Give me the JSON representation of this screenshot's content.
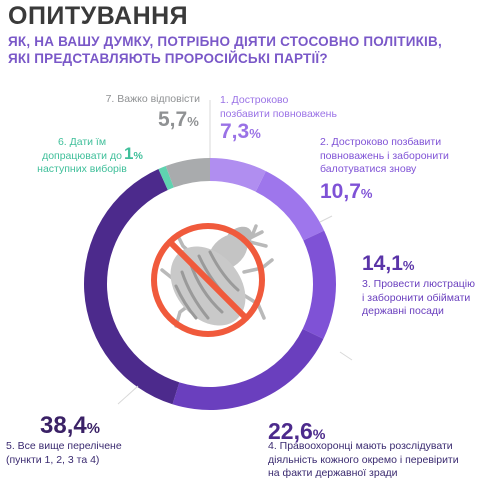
{
  "header": {
    "title": "ОПИТУВАННЯ",
    "question_line1": "ЯК, НА ВАШУ ДУМКУ, ПОТРІБНО ДІЯТИ СТОСОВНО ПОЛІТИКІВ,",
    "question_line2": "ЯКІ ПРЕДСТАВЛЯЮТЬ ПРОРОСІЙСЬКІ ПАРТІЇ?"
  },
  "center_icon": "crossed-out-colorado-beetle-icon",
  "chart_data": {
    "type": "pie",
    "style": "donut",
    "unit": "%",
    "slices": [
      {
        "label_lines": [
          "1. Достроково",
          "позбавити повноважень"
        ],
        "value": 7.3,
        "value_text": "7,3",
        "color": "#b08ef0"
      },
      {
        "label_lines": [
          "2. Достроково позбавити",
          "повноважень і заборонити",
          "балотуватися знову"
        ],
        "value": 10.7,
        "value_text": "10,7",
        "color": "#9e76ec"
      },
      {
        "label_lines": [
          "3. Провести люстрацію",
          "і заборонити обіймати",
          "державні посади"
        ],
        "value": 14.1,
        "value_text": "14,1",
        "color": "#7f52d6"
      },
      {
        "label_lines": [
          "4. Правоохоронці мають розслідувати",
          "діяльність кожного окремо і перевірити",
          "на факти державної зради"
        ],
        "value": 22.6,
        "value_text": "22,6",
        "color": "#6a3fbe"
      },
      {
        "label_lines": [
          "5. Все вище перелічене",
          "(пункти 1, 2, 3 та 4)"
        ],
        "value": 38.4,
        "value_text": "38,4",
        "color": "#4c2a8c"
      },
      {
        "label_lines": [
          "6. Дати їм",
          "допрацювати до",
          "наступних виборів"
        ],
        "value": 1,
        "value_text": "1",
        "color": "#5fd3b0"
      },
      {
        "label_lines": [
          "7. Важко відповісти"
        ],
        "value": 5.7,
        "value_text": "5,7",
        "color": "#a9abad"
      }
    ]
  }
}
